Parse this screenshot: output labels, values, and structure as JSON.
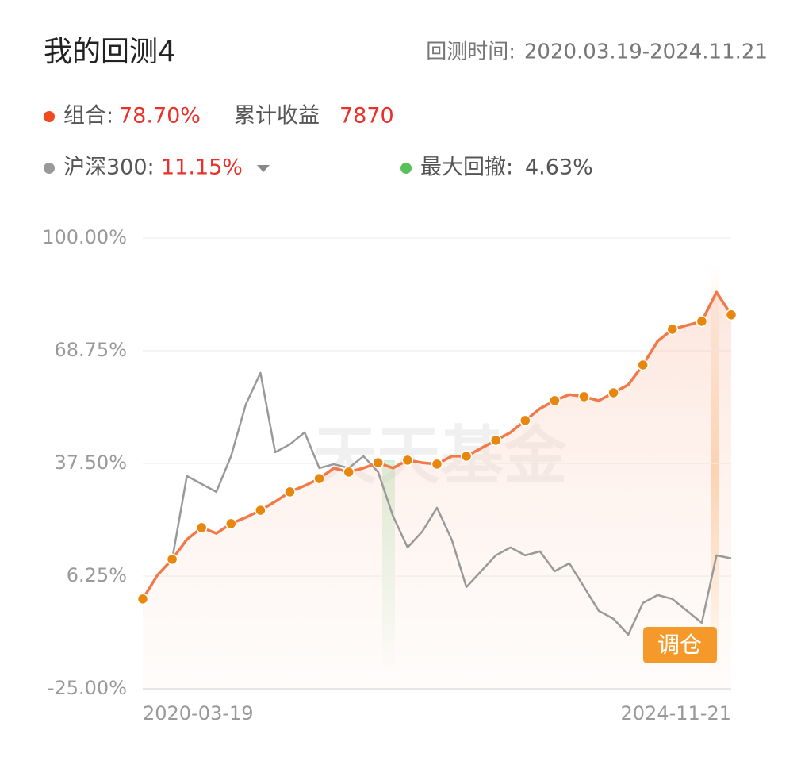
{
  "header": {
    "title": "我的回测4",
    "period_label": "回测时间:",
    "period": "2020.03.19-2024.11.21"
  },
  "summary": {
    "portfolio_label": "组合:",
    "portfolio_return": "78.70%",
    "profit_label": "累计收益",
    "profit": "7870",
    "benchmark_label": "沪深300:",
    "benchmark_return": "11.15%",
    "drawdown_label": "最大回撤:",
    "drawdown": "4.63%",
    "rebalance": "调仓",
    "watermark": "天天基金"
  },
  "chart_data": {
    "type": "line",
    "categories": [
      "2020-03-19",
      null,
      null,
      null,
      null,
      null,
      null,
      null,
      null,
      null,
      null,
      null,
      null,
      null,
      null,
      null,
      null,
      null,
      null,
      null,
      null,
      null,
      null,
      null,
      null,
      null,
      null,
      null,
      null,
      null,
      null,
      null,
      null,
      null,
      null,
      null,
      null,
      null,
      null,
      null,
      "2024-11-21"
    ],
    "series": [
      {
        "name": "组合",
        "color": "#f27a4a",
        "values": [
          -0.1,
          6.5,
          10.9,
          16.4,
          19.7,
          18.1,
          20.8,
          22.5,
          24.5,
          26.9,
          29.6,
          31.3,
          33.3,
          36.2,
          35.1,
          36.2,
          37.7,
          36.2,
          38.4,
          37.7,
          37.3,
          39.5,
          39.5,
          41.7,
          43.9,
          46.1,
          49.4,
          52.7,
          54.9,
          56.6,
          56.0,
          54.9,
          57.1,
          59.3,
          64.8,
          71.4,
          74.7,
          75.8,
          76.9,
          85.0,
          78.7
        ]
      },
      {
        "name": "沪深300",
        "color": "#999999",
        "values": [
          -0.1,
          6.5,
          10.9,
          34.0,
          31.8,
          29.6,
          39.5,
          53.8,
          62.6,
          40.6,
          42.8,
          46.1,
          36.2,
          37.3,
          36.2,
          39.5,
          35.1,
          23.0,
          14.2,
          18.6,
          25.2,
          16.4,
          3.2,
          7.6,
          12.0,
          14.2,
          12.0,
          13.1,
          7.6,
          9.8,
          3.2,
          -3.4,
          -5.6,
          -10.0,
          -1.2,
          1.0,
          -0.1,
          -3.4,
          -6.7,
          12.0,
          11.15
        ]
      }
    ],
    "ylim": [
      -25,
      100
    ],
    "yticks": [
      {
        "value": 100,
        "label": "100.00%"
      },
      {
        "value": 68.75,
        "label": "68.75%"
      },
      {
        "value": 37.5,
        "label": "37.50%"
      },
      {
        "value": 6.25,
        "label": "6.25%"
      },
      {
        "value": -25,
        "label": "-25.00%"
      }
    ],
    "grid": true
  }
}
